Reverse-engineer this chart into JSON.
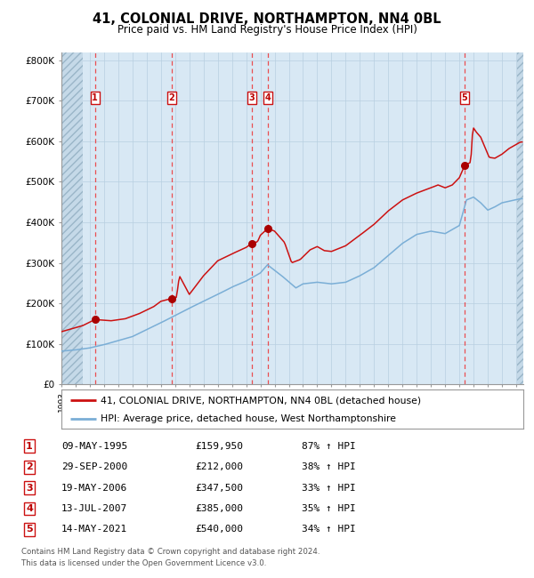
{
  "title": "41, COLONIAL DRIVE, NORTHAMPTON, NN4 0BL",
  "subtitle": "Price paid vs. HM Land Registry's House Price Index (HPI)",
  "legend_line1": "41, COLONIAL DRIVE, NORTHAMPTON, NN4 0BL (detached house)",
  "legend_line2": "HPI: Average price, detached house, West Northamptonshire",
  "footer1": "Contains HM Land Registry data © Crown copyright and database right 2024.",
  "footer2": "This data is licensed under the Open Government Licence v3.0.",
  "sales": [
    {
      "num": 1,
      "date": "09-MAY-1995",
      "price": 159950,
      "year": 1995.36,
      "pct": "87%",
      "dir": "↑"
    },
    {
      "num": 2,
      "date": "29-SEP-2000",
      "price": 212000,
      "year": 2000.75,
      "pct": "38%",
      "dir": "↑"
    },
    {
      "num": 3,
      "date": "19-MAY-2006",
      "price": 347500,
      "year": 2006.38,
      "pct": "33%",
      "dir": "↑"
    },
    {
      "num": 4,
      "date": "13-JUL-2007",
      "price": 385000,
      "year": 2007.53,
      "pct": "35%",
      "dir": "↑"
    },
    {
      "num": 5,
      "date": "14-MAY-2021",
      "price": 540000,
      "year": 2021.37,
      "pct": "34%",
      "dir": "↑"
    }
  ],
  "hpi_color": "#7aaed6",
  "price_color": "#cc1111",
  "dot_color": "#aa0000",
  "bg_color": "#d8e8f4",
  "grid_color": "#b8cfe0",
  "dashed_vline_color": "#ee3333",
  "ylim": [
    0,
    820000
  ],
  "yticks": [
    0,
    100000,
    200000,
    300000,
    400000,
    500000,
    600000,
    700000,
    800000
  ],
  "ytick_labels": [
    "£0",
    "£100K",
    "£200K",
    "£300K",
    "£400K",
    "£500K",
    "£600K",
    "£700K",
    "£800K"
  ],
  "xmin": 1993.0,
  "xmax": 2025.5,
  "hpi_anchors_x": [
    1993.0,
    1994.0,
    1995.0,
    1996.0,
    1997.0,
    1998.0,
    1999.0,
    2000.0,
    2001.0,
    2002.0,
    2003.0,
    2004.0,
    2005.0,
    2006.0,
    2007.0,
    2007.5,
    2008.5,
    2009.5,
    2010.0,
    2011.0,
    2012.0,
    2013.0,
    2014.0,
    2015.0,
    2016.0,
    2017.0,
    2018.0,
    2019.0,
    2020.0,
    2021.0,
    2021.5,
    2022.0,
    2022.5,
    2023.0,
    2023.5,
    2024.0,
    2024.5,
    2025.3
  ],
  "hpi_anchors_y": [
    82000,
    85000,
    90000,
    98000,
    108000,
    118000,
    135000,
    152000,
    170000,
    188000,
    205000,
    222000,
    240000,
    255000,
    275000,
    295000,
    268000,
    238000,
    248000,
    252000,
    248000,
    252000,
    268000,
    288000,
    318000,
    348000,
    370000,
    378000,
    372000,
    392000,
    455000,
    462000,
    448000,
    430000,
    438000,
    448000,
    452000,
    458000
  ],
  "price_anchors_x": [
    1993.0,
    1994.5,
    1995.36,
    1996.5,
    1997.5,
    1998.5,
    1999.5,
    2000.0,
    2000.75,
    2001.1,
    2001.3,
    2002.0,
    2003.0,
    2004.0,
    2005.0,
    2006.0,
    2006.38,
    2006.8,
    2007.0,
    2007.53,
    2008.0,
    2008.7,
    2009.2,
    2009.8,
    2010.5,
    2011.0,
    2011.5,
    2012.0,
    2013.0,
    2014.0,
    2015.0,
    2016.0,
    2017.0,
    2018.0,
    2019.0,
    2019.5,
    2020.0,
    2020.5,
    2021.0,
    2021.37,
    2021.8,
    2021.95,
    2022.2,
    2022.5,
    2022.8,
    2023.1,
    2023.5,
    2024.0,
    2024.5,
    2025.3
  ],
  "price_anchors_y": [
    130000,
    145000,
    159950,
    157000,
    162000,
    175000,
    192000,
    205000,
    212000,
    215000,
    268000,
    222000,
    268000,
    305000,
    322000,
    338000,
    347500,
    352000,
    368000,
    385000,
    378000,
    350000,
    300000,
    308000,
    332000,
    340000,
    330000,
    328000,
    342000,
    368000,
    395000,
    428000,
    455000,
    472000,
    485000,
    492000,
    485000,
    492000,
    510000,
    540000,
    548000,
    635000,
    622000,
    610000,
    585000,
    560000,
    558000,
    568000,
    582000,
    598000
  ]
}
